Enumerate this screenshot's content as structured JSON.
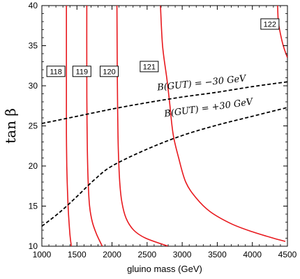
{
  "chart_data": {
    "type": "line",
    "title": "",
    "xlabel": "gluino mass (GeV)",
    "ylabel": "tan β",
    "xlim": [
      1000,
      4500
    ],
    "ylim": [
      10,
      40
    ],
    "x_ticks": [
      "1000",
      "1500",
      "2000",
      "2500",
      "3000",
      "3500",
      "4000",
      "4500"
    ],
    "y_ticks": [
      "10",
      "15",
      "20",
      "25",
      "30",
      "35",
      "40"
    ],
    "grid": false,
    "contours": [
      {
        "label": "118",
        "color": "#e8191e",
        "label_at": [
          1200,
          31.8
        ],
        "points": [
          [
            1420,
            10
          ],
          [
            1400,
            11.5
          ],
          [
            1380,
            14
          ],
          [
            1365,
            17
          ],
          [
            1355,
            20
          ],
          [
            1350,
            24
          ],
          [
            1350,
            28
          ],
          [
            1350,
            32
          ],
          [
            1350,
            36
          ],
          [
            1350,
            40
          ]
        ]
      },
      {
        "label": "119",
        "color": "#e8191e",
        "label_at": [
          1570,
          31.8
        ],
        "points": [
          [
            1860,
            10
          ],
          [
            1780,
            11.5
          ],
          [
            1720,
            13
          ],
          [
            1680,
            15
          ],
          [
            1660,
            18
          ],
          [
            1648,
            22
          ],
          [
            1642,
            27
          ],
          [
            1640,
            32
          ],
          [
            1640,
            40
          ]
        ]
      },
      {
        "label": "120",
        "color": "#e8191e",
        "label_at": [
          1960,
          31.8
        ],
        "points": [
          [
            2800,
            10
          ],
          [
            2480,
            11
          ],
          [
            2310,
            12
          ],
          [
            2200,
            13.5
          ],
          [
            2140,
            15.5
          ],
          [
            2110,
            18
          ],
          [
            2090,
            22
          ],
          [
            2080,
            27
          ],
          [
            2075,
            32
          ],
          [
            2070,
            40
          ]
        ]
      },
      {
        "label": "121",
        "color": "#e8191e",
        "label_at": [
          2530,
          32.4
        ],
        "points": [
          [
            4470,
            10.6
          ],
          [
            4300,
            11
          ],
          [
            4000,
            11.8
          ],
          [
            3700,
            12.8
          ],
          [
            3400,
            14.3
          ],
          [
            3200,
            16
          ],
          [
            3050,
            18
          ],
          [
            2950,
            21
          ],
          [
            2870,
            24
          ],
          [
            2820,
            28
          ],
          [
            2780,
            31
          ],
          [
            2720,
            35
          ],
          [
            2690,
            40
          ]
        ]
      },
      {
        "label": "122",
        "color": "#e8191e",
        "label_at": [
          4250,
          37.7
        ],
        "points": [
          [
            4500,
            33.5
          ],
          [
            4440,
            35
          ],
          [
            4400,
            36.5
          ],
          [
            4370,
            38
          ],
          [
            4360,
            40
          ]
        ]
      }
    ],
    "series": [
      {
        "label": "B(GUT) = −30 GeV",
        "color": "#000000",
        "dash": true,
        "points": [
          [
            1000,
            25.3
          ],
          [
            1500,
            26.2
          ],
          [
            2000,
            27.1
          ],
          [
            2500,
            27.9
          ],
          [
            3000,
            28.6
          ],
          [
            3500,
            29.2
          ],
          [
            4000,
            29.9
          ],
          [
            4500,
            30.5
          ]
        ]
      },
      {
        "label": "B(GUT) = +30 GeV",
        "color": "#000000",
        "dash": true,
        "points": [
          [
            1000,
            12.5
          ],
          [
            1250,
            14.2
          ],
          [
            1500,
            16.2
          ],
          [
            1750,
            18.3
          ],
          [
            2000,
            20.0
          ],
          [
            2500,
            22.1
          ],
          [
            3000,
            23.8
          ],
          [
            3500,
            25.1
          ],
          [
            4000,
            26.2
          ],
          [
            4500,
            27.3
          ]
        ]
      }
    ],
    "annotations": [
      {
        "text": "B(GUT) = −30 GeV",
        "at": [
          3280,
          30.0
        ],
        "angle": -6
      },
      {
        "text": "B(GUT) = +30 GeV",
        "at": [
          3380,
          26.9
        ],
        "angle": -8
      }
    ]
  }
}
